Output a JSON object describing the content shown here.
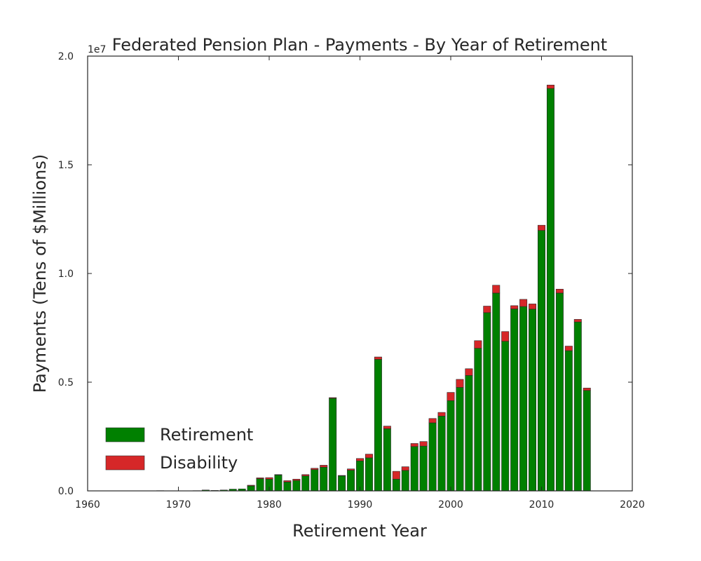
{
  "chart_data": {
    "type": "bar",
    "stacked": true,
    "title": "Federated Pension Plan - Payments - By Year of Retirement",
    "xlabel": "Retirement Year",
    "ylabel": "Payments (Tens of $Millions)",
    "offset_label": "1e7",
    "xlim": [
      1960,
      2020
    ],
    "ylim": [
      0,
      20000000
    ],
    "xticks": [
      1960,
      1970,
      1980,
      1990,
      2000,
      2010,
      2020
    ],
    "xtick_labels": [
      "1960",
      "1970",
      "1980",
      "1990",
      "2000",
      "2010",
      "2020"
    ],
    "yticks": [
      0,
      5000000,
      10000000,
      15000000,
      20000000
    ],
    "ytick_labels": [
      "0.0",
      "0.5",
      "1.0",
      "1.5",
      "2.0"
    ],
    "legend_position": "lower-left",
    "grid": false,
    "x": [
      1968,
      1969,
      1970,
      1971,
      1972,
      1973,
      1974,
      1975,
      1976,
      1977,
      1978,
      1979,
      1980,
      1981,
      1982,
      1983,
      1984,
      1985,
      1986,
      1987,
      1988,
      1989,
      1990,
      1991,
      1992,
      1993,
      1994,
      1995,
      1996,
      1997,
      1998,
      1999,
      2000,
      2001,
      2002,
      2003,
      2004,
      2005,
      2006,
      2007,
      2008,
      2009,
      2010,
      2011,
      2012,
      2013,
      2014,
      2015
    ],
    "series": [
      {
        "name": "Retirement",
        "color": "#008000",
        "values": [
          10000,
          5000,
          5000,
          5000,
          10000,
          40000,
          20000,
          40000,
          80000,
          90000,
          230000,
          560000,
          540000,
          730000,
          410000,
          480000,
          690000,
          980000,
          1090000,
          4260000,
          690000,
          950000,
          1380000,
          1520000,
          6050000,
          2860000,
          540000,
          940000,
          2040000,
          2060000,
          3130000,
          3440000,
          4150000,
          4760000,
          5310000,
          6560000,
          8200000,
          9100000,
          6880000,
          8370000,
          8480000,
          8360000,
          11980000,
          18510000,
          9100000,
          6450000,
          7770000,
          4620000
        ]
      },
      {
        "name": "Disability",
        "color": "#d62728",
        "values": [
          0,
          0,
          0,
          0,
          0,
          0,
          0,
          0,
          0,
          0,
          30000,
          40000,
          70000,
          20000,
          60000,
          60000,
          60000,
          60000,
          90000,
          30000,
          20000,
          60000,
          110000,
          170000,
          110000,
          120000,
          360000,
          170000,
          140000,
          210000,
          200000,
          170000,
          380000,
          370000,
          310000,
          350000,
          300000,
          360000,
          450000,
          150000,
          330000,
          240000,
          240000,
          160000,
          180000,
          210000,
          120000,
          110000
        ]
      }
    ]
  }
}
